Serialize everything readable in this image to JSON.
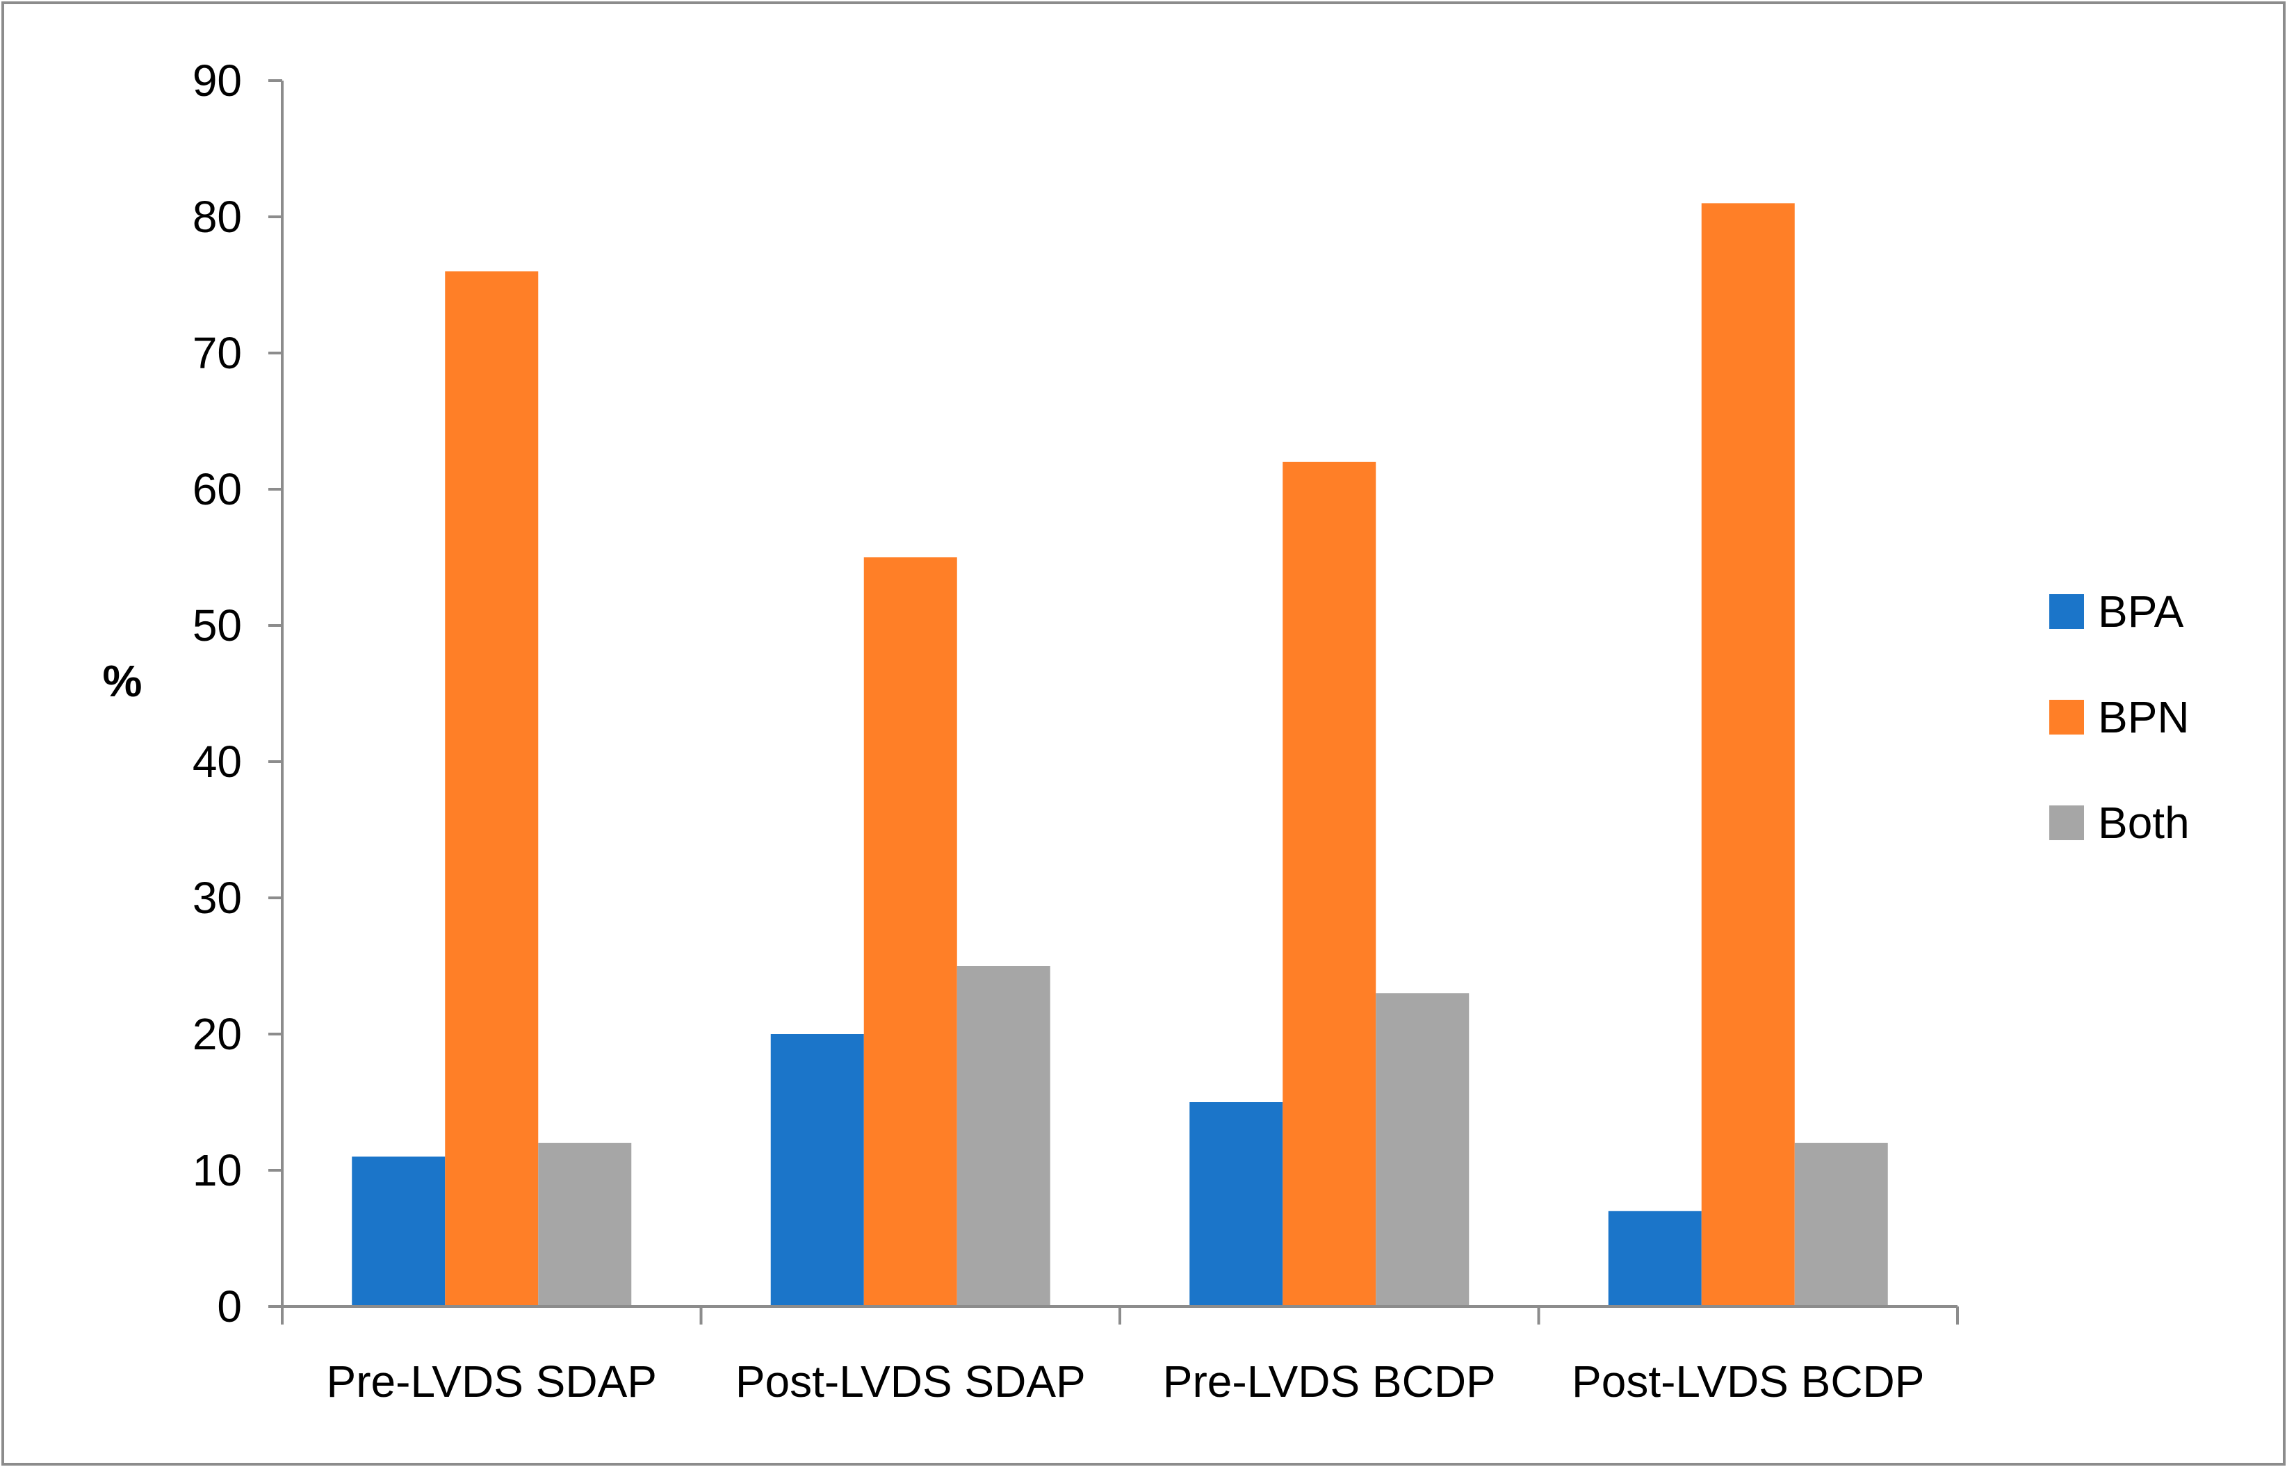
{
  "chart_data": {
    "type": "bar",
    "title": "",
    "xlabel": "",
    "ylabel": "%",
    "ylim": [
      0,
      90
    ],
    "yticks": [
      0,
      10,
      20,
      30,
      40,
      50,
      60,
      70,
      80,
      90
    ],
    "grid": false,
    "legend_position": "right",
    "categories": [
      "Pre-LVDS SDAP",
      "Post-LVDS SDAP",
      "Pre-LVDS BCDP",
      "Post-LVDS BCDP"
    ],
    "series": [
      {
        "name": "BPA",
        "color": "#1B75C9",
        "values": [
          11,
          20,
          15,
          7
        ]
      },
      {
        "name": "BPN",
        "color": "#FF7F27",
        "values": [
          76,
          55,
          62,
          81
        ]
      },
      {
        "name": "Both",
        "color": "#A6A6A6",
        "values": [
          12,
          25,
          23,
          12
        ]
      }
    ]
  }
}
